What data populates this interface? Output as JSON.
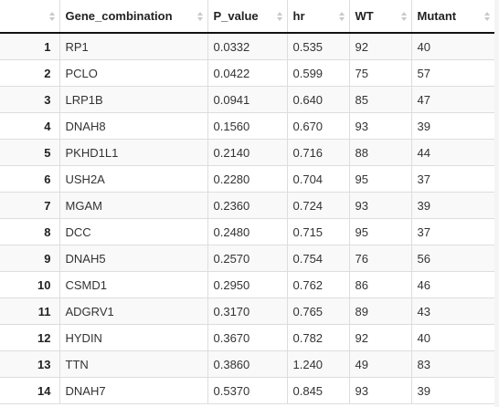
{
  "table": {
    "columns": [
      "",
      "Gene_combination",
      "P_value",
      "hr",
      "WT",
      "Mutant"
    ],
    "rows": [
      {
        "index": "1",
        "gene": "RP1",
        "p_value": "0.0332",
        "hr": "0.535",
        "wt": "92",
        "mutant": "40"
      },
      {
        "index": "2",
        "gene": "PCLO",
        "p_value": "0.0422",
        "hr": "0.599",
        "wt": "75",
        "mutant": "57"
      },
      {
        "index": "3",
        "gene": "LRP1B",
        "p_value": "0.0941",
        "hr": "0.640",
        "wt": "85",
        "mutant": "47"
      },
      {
        "index": "4",
        "gene": "DNAH8",
        "p_value": "0.1560",
        "hr": "0.670",
        "wt": "93",
        "mutant": "39"
      },
      {
        "index": "5",
        "gene": "PKHD1L1",
        "p_value": "0.2140",
        "hr": "0.716",
        "wt": "88",
        "mutant": "44"
      },
      {
        "index": "6",
        "gene": "USH2A",
        "p_value": "0.2280",
        "hr": "0.704",
        "wt": "95",
        "mutant": "37"
      },
      {
        "index": "7",
        "gene": "MGAM",
        "p_value": "0.2360",
        "hr": "0.724",
        "wt": "93",
        "mutant": "39"
      },
      {
        "index": "8",
        "gene": "DCC",
        "p_value": "0.2480",
        "hr": "0.715",
        "wt": "95",
        "mutant": "37"
      },
      {
        "index": "9",
        "gene": "DNAH5",
        "p_value": "0.2570",
        "hr": "0.754",
        "wt": "76",
        "mutant": "56"
      },
      {
        "index": "10",
        "gene": "CSMD1",
        "p_value": "0.2950",
        "hr": "0.762",
        "wt": "86",
        "mutant": "46"
      },
      {
        "index": "11",
        "gene": "ADGRV1",
        "p_value": "0.3170",
        "hr": "0.765",
        "wt": "89",
        "mutant": "43"
      },
      {
        "index": "12",
        "gene": "HYDIN",
        "p_value": "0.3670",
        "hr": "0.782",
        "wt": "92",
        "mutant": "40"
      },
      {
        "index": "13",
        "gene": "TTN",
        "p_value": "0.3860",
        "hr": "1.240",
        "wt": "49",
        "mutant": "83"
      },
      {
        "index": "14",
        "gene": "DNAH7",
        "p_value": "0.5370",
        "hr": "0.845",
        "wt": "93",
        "mutant": "39"
      }
    ]
  },
  "icons": {
    "sort": "sort-up-down-icon"
  },
  "colors": {
    "header_border": "#111111",
    "grid": "#dddddd",
    "stripe": "#f9f9f9",
    "sort_arrow": "#c8c8c8"
  }
}
